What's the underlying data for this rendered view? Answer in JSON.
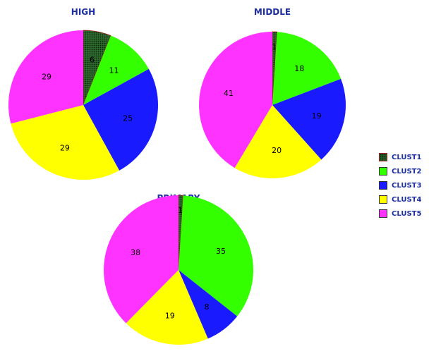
{
  "chart_data": {
    "type": "pie",
    "series_labels": [
      "CLUST1",
      "CLUST2",
      "CLUST3",
      "CLUST4",
      "CLUST5"
    ],
    "colors": [
      "#2e6b2e",
      "#33ff00",
      "#1a1aff",
      "#ffff00",
      "#ff33ff"
    ],
    "pies": [
      {
        "title": "HIGH",
        "values": [
          6,
          11,
          25,
          29,
          29
        ],
        "labels": [
          "6",
          "11",
          "25",
          "29",
          "29"
        ]
      },
      {
        "title": "MIDDLE",
        "values": [
          1,
          18,
          19,
          20,
          41
        ],
        "labels": [
          "1",
          "18",
          "19",
          "20",
          "41"
        ]
      },
      {
        "title": "PRIMARY",
        "values": [
          1,
          35,
          8,
          19,
          38
        ],
        "labels": [
          "1",
          "35",
          "8",
          "19",
          "38"
        ]
      }
    ],
    "legend": {
      "position": "right"
    }
  }
}
